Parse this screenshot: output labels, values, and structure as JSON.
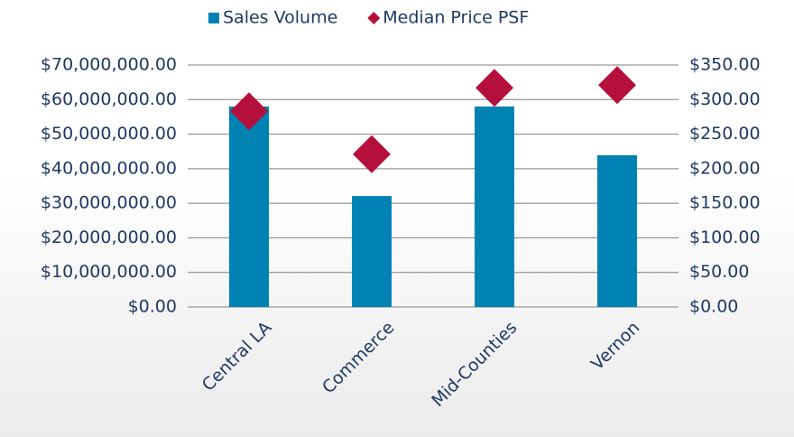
{
  "chart_data": {
    "type": "bar-marker",
    "categories": [
      "Central LA",
      "Commerce",
      "Mid-Counties",
      "Vernon"
    ],
    "series": [
      {
        "name": "Sales Volume",
        "color": "#0083b3",
        "values": [
          58000000,
          32100000,
          58000000,
          43900000
        ]
      },
      {
        "name": "Median Price PSF",
        "color": "#b5103c",
        "axis": "y2",
        "values": [
          283,
          221,
          317,
          321
        ]
      }
    ],
    "ylim": [
      0,
      70000000
    ],
    "yticks": [
      {
        "value": 0,
        "label": "$0.00"
      },
      {
        "value": 10000000,
        "label": "$10,000,000.00"
      },
      {
        "value": 20000000,
        "label": "$20,000,000.00"
      },
      {
        "value": 30000000,
        "label": "$30,000,000.00"
      },
      {
        "value": 40000000,
        "label": "$40,000,000.00"
      },
      {
        "value": 50000000,
        "label": "$50,000,000.00"
      },
      {
        "value": 60000000,
        "label": "$60,000,000.00"
      },
      {
        "value": 70000000,
        "label": "$70,000,000.00"
      }
    ],
    "y2lim": [
      0,
      350
    ],
    "y2ticks": [
      {
        "value": 0,
        "label": "$0.00"
      },
      {
        "value": 50,
        "label": "$50.00"
      },
      {
        "value": 100,
        "label": "$100.00"
      },
      {
        "value": 150,
        "label": "$150.00"
      },
      {
        "value": 200,
        "label": "$200.00"
      },
      {
        "value": 250,
        "label": "$250.00"
      },
      {
        "value": 300,
        "label": "$300.00"
      },
      {
        "value": 350,
        "label": "$350.00"
      }
    ],
    "grid": true,
    "legend": "top"
  }
}
